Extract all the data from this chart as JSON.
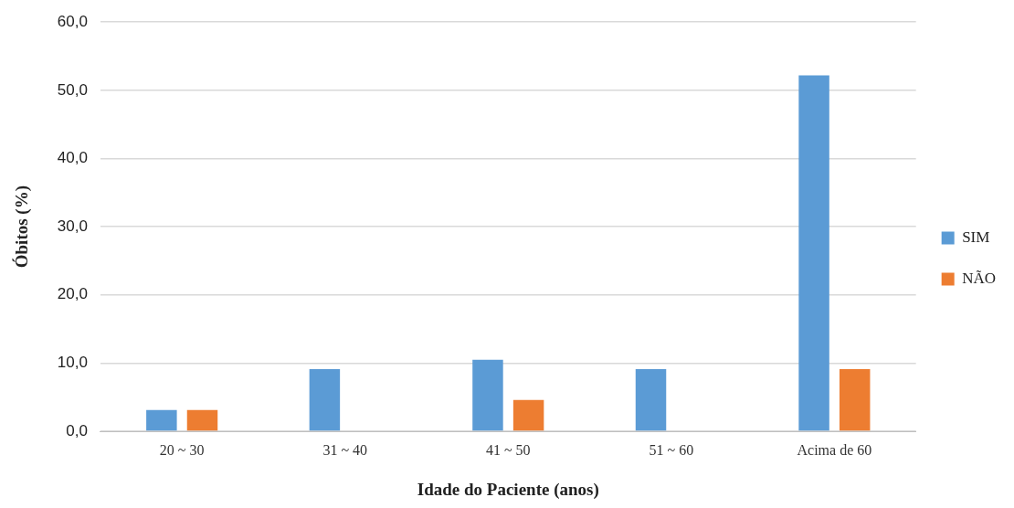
{
  "chart_data": {
    "type": "bar",
    "xlabel": "Idade do Paciente (anos)",
    "ylabel": "Óbitos (%)",
    "categories": [
      "20 ~ 30",
      "31 ~ 40",
      "41 ~ 50",
      "51 ~ 60",
      "Acima de 60"
    ],
    "series": [
      {
        "name": "SIM",
        "color": "#5b9bd5",
        "values": [
          3.1,
          9.1,
          10.5,
          9.1,
          52.2
        ]
      },
      {
        "name": "NÃO",
        "color": "#ed7d31",
        "values": [
          3.1,
          0,
          4.6,
          0,
          9.1
        ]
      }
    ],
    "ylim": [
      0,
      60
    ],
    "yticks": [
      {
        "value": 0,
        "label": "0,0"
      },
      {
        "value": 10,
        "label": "10,0"
      },
      {
        "value": 20,
        "label": "20,0"
      },
      {
        "value": 30,
        "label": "30,0"
      },
      {
        "value": 40,
        "label": "40,0"
      },
      {
        "value": 50,
        "label": "50,0"
      },
      {
        "value": 60,
        "label": "60,0"
      }
    ],
    "grid": "y",
    "legend": "right"
  }
}
